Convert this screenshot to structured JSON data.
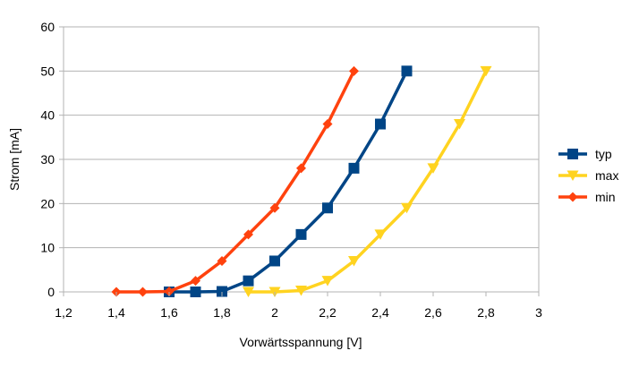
{
  "chart_data": {
    "type": "line",
    "title": "",
    "xlabel": "Vorwärtsspannung [V]",
    "ylabel": "Strom [mA]",
    "xlim": [
      1.2,
      3
    ],
    "ylim": [
      0,
      60
    ],
    "x_ticks": [
      1.2,
      1.4,
      1.6,
      1.8,
      2,
      2.2,
      2.4,
      2.6,
      2.8,
      3
    ],
    "x_tick_labels": [
      "1,2",
      "1,4",
      "1,6",
      "1,8",
      "2",
      "2,2",
      "2,4",
      "2,6",
      "2,8",
      "3"
    ],
    "y_ticks": [
      0,
      10,
      20,
      30,
      40,
      50,
      60
    ],
    "y_tick_labels": [
      "0",
      "10",
      "20",
      "30",
      "40",
      "50",
      "60"
    ],
    "grid": "horizontal",
    "legend_position": "right",
    "series": [
      {
        "name": "typ",
        "color": "#004586",
        "marker": "square",
        "x": [
          1.6,
          1.7,
          1.8,
          1.9,
          2.0,
          2.1,
          2.2,
          2.3,
          2.4,
          2.5
        ],
        "y": [
          0,
          0,
          0.1,
          2.5,
          7,
          13,
          19,
          28,
          38,
          50
        ]
      },
      {
        "name": "max",
        "color": "#ffd320",
        "marker": "triangle-down",
        "x": [
          1.9,
          2.0,
          2.1,
          2.2,
          2.3,
          2.4,
          2.5,
          2.6,
          2.7,
          2.8
        ],
        "y": [
          0,
          0,
          0.3,
          2.5,
          7,
          13,
          19,
          28,
          38,
          50
        ]
      },
      {
        "name": "min",
        "color": "#ff420e",
        "marker": "diamond",
        "x": [
          1.4,
          1.5,
          1.6,
          1.7,
          1.8,
          1.9,
          2.0,
          2.1,
          2.2,
          2.3
        ],
        "y": [
          0,
          0,
          0.1,
          2.5,
          7,
          13,
          19,
          28,
          38,
          50
        ]
      }
    ]
  }
}
